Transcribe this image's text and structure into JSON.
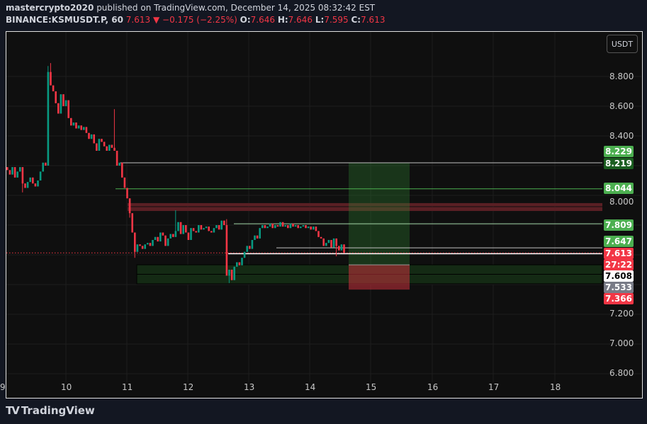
{
  "header": {
    "author": "mastercrypto2020",
    "published": "published on TradingView.com, December 14, 2025 08:32:42 EST",
    "symbol": "BINANCE:KSMUSDT.P, 60",
    "last": "7.613",
    "change": "−0.175 (−2.25%)",
    "o_label": "O:",
    "o": "7.646",
    "h_label": "H:",
    "h": "7.646",
    "l_label": "L:",
    "l": "7.595",
    "c_label": "C:",
    "c": "7.613"
  },
  "currency_button": "USDT",
  "branding": "TradingView",
  "colors": {
    "up": "#089981",
    "down": "#f23645",
    "green_label": "#4caf50",
    "dark_green_label": "#1b5e20",
    "gray_label": "#787b86"
  },
  "chart_data": {
    "type": "candlestick",
    "interval": "60",
    "ylim": [
      6.75,
      8.95
    ],
    "y_ticks": [
      "8.800",
      "8.600",
      "8.400",
      "8.000",
      "7.200",
      "7.000",
      "6.800"
    ],
    "x_ticks": [
      "9",
      "10",
      "11",
      "12",
      "13",
      "14",
      "15",
      "16",
      "17",
      "18"
    ],
    "first_open": 8.19,
    "closes": [
      8.17,
      8.14,
      8.19,
      8.12,
      8.16,
      8.19,
      8.08,
      8.05,
      8.09,
      8.12,
      8.08,
      8.06,
      8.1,
      8.16,
      8.22,
      8.2,
      8.83,
      8.74,
      8.7,
      8.62,
      8.55,
      8.68,
      8.6,
      8.64,
      8.52,
      8.47,
      8.49,
      8.45,
      8.47,
      8.44,
      8.46,
      8.42,
      8.38,
      8.41,
      8.35,
      8.3,
      8.38,
      8.36,
      8.33,
      8.3,
      8.34,
      8.32,
      8.3,
      8.2,
      8.22,
      8.12,
      8.05,
      7.98,
      7.88,
      7.75,
      7.62,
      7.67,
      7.66,
      7.64,
      7.67,
      7.68,
      7.66,
      7.7,
      7.72,
      7.69,
      7.75,
      7.73,
      7.66,
      7.71,
      7.74,
      7.72,
      7.76,
      7.82,
      7.74,
      7.8,
      7.75,
      7.7,
      7.78,
      7.76,
      7.75,
      7.8,
      7.77,
      7.78,
      7.79,
      7.76,
      7.75,
      7.78,
      7.8,
      7.77,
      7.83,
      7.8,
      7.46,
      7.5,
      7.43,
      7.52,
      7.55,
      7.53,
      7.58,
      7.62,
      7.66,
      7.64,
      7.7,
      7.73,
      7.71,
      7.78,
      7.8,
      7.78,
      7.79,
      7.81,
      7.78,
      7.8,
      7.79,
      7.82,
      7.79,
      7.8,
      7.78,
      7.81,
      7.79,
      7.8,
      7.78,
      7.79,
      7.8,
      7.78,
      7.79,
      7.77,
      7.79,
      7.76,
      7.72,
      7.71,
      7.66,
      7.68,
      7.7,
      7.65,
      7.71,
      7.66,
      7.63,
      7.67,
      7.613
    ],
    "notable_highs": {
      "16": 8.87,
      "17": 8.89,
      "42": 8.58,
      "66": 7.9,
      "86": 7.84
    },
    "notable_lows": {
      "6": 8.02,
      "48": 7.85,
      "50": 7.58,
      "87": 7.41,
      "129": 7.59
    },
    "horizontal_lines": [
      {
        "price": 8.219,
        "color": "#c0c0c0"
      },
      {
        "price": 8.044,
        "color": "#4caf50"
      },
      {
        "price": 7.809,
        "color": "#a5d6a7"
      },
      {
        "price": 7.647,
        "color": "#c0c0c0"
      },
      {
        "price": 7.608,
        "color": "#ffffff"
      }
    ],
    "resistance_zone": [
      7.895,
      7.948
    ],
    "support_zone": [
      7.405,
      7.533
    ],
    "long_position": {
      "target": 8.219,
      "entry": 7.533,
      "stop": 7.366
    },
    "price_labels": [
      {
        "text": "8.229",
        "bg": "#4caf50",
        "fg": "#ffffff"
      },
      {
        "text": "8.219",
        "bg": "#1b5e20",
        "fg": "#ffffff"
      },
      {
        "text": "8.044",
        "bg": "#4caf50",
        "fg": "#ffffff"
      },
      {
        "text": "7.809",
        "bg": "#4caf50",
        "fg": "#ffffff"
      },
      {
        "text": "7.647",
        "bg": "#4caf50",
        "fg": "#ffffff"
      },
      {
        "text": "7.613",
        "bg": "#f23645",
        "fg": "#ffffff"
      },
      {
        "text": "27:22",
        "bg": "#f23645",
        "fg": "#ffffff"
      },
      {
        "text": "7.608",
        "bg": "#ffffff",
        "fg": "#000000"
      },
      {
        "text": "7.533",
        "bg": "#787b86",
        "fg": "#ffffff"
      },
      {
        "text": "7.366",
        "bg": "#f23645",
        "fg": "#ffffff"
      }
    ]
  }
}
